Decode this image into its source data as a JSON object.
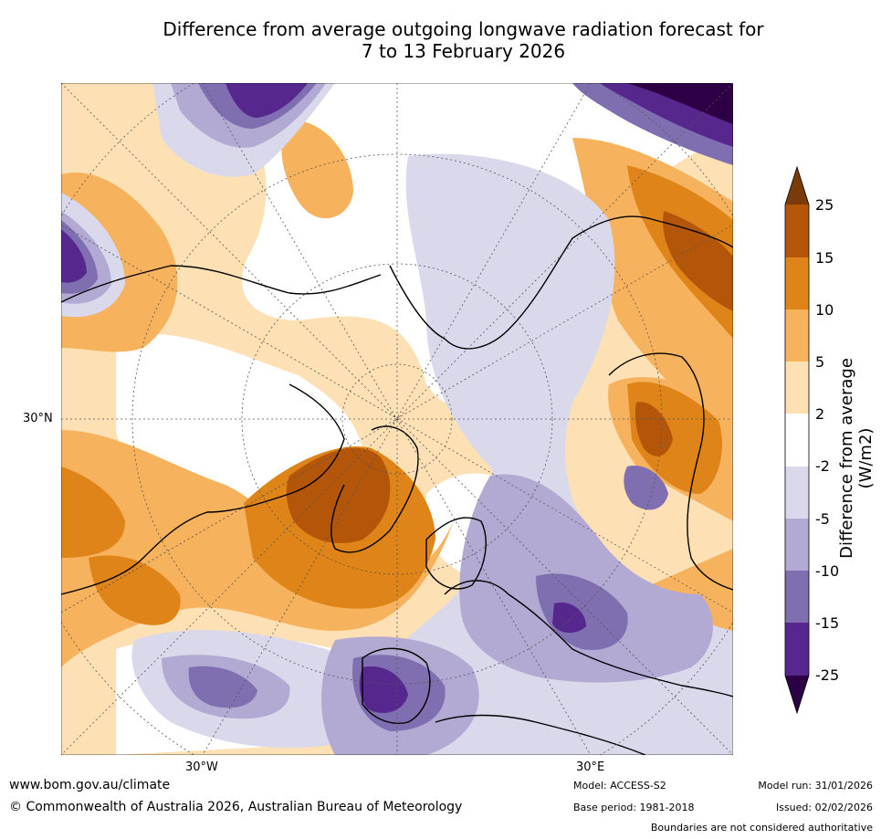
{
  "title": {
    "line1": "Difference from average outgoing longwave radiation forecast for",
    "line2": "7 to 13 February 2026"
  },
  "map": {
    "projection": "North polar stereographic",
    "axis_labels": {
      "left": "30°N",
      "bottom_left": "30°W",
      "bottom_right": "30°E"
    }
  },
  "colorbar": {
    "title": "Difference from average (W/m2)",
    "tick_labels": [
      "25",
      "15",
      "10",
      "5",
      "2",
      "-2",
      "-5",
      "-10",
      "-15",
      "-25"
    ],
    "colors": {
      "extend_high": "#7a3b0c",
      "b15_25": "#b3560a",
      "b10_15": "#df8418",
      "b5_10": "#f7b25d",
      "b2_5": "#fde0b4",
      "neutral": "#ffffff",
      "bm2_m5": "#dad9ec",
      "bm5_m10": "#b3aad4",
      "bm10_m15": "#7f6fb0",
      "bm15_m25": "#56278d",
      "extend_low": "#2d0046"
    }
  },
  "footer": {
    "url": "www.bom.gov.au/climate",
    "copyright": "© Commonwealth of Australia 2026, Australian Bureau of Meteorology",
    "model": "Model: ACCESS-S2",
    "base_period": "Base period: 1981-2018",
    "model_run": "Model run: 31/01/2026",
    "issued": "Issued: 02/02/2026",
    "disclaimer": "Boundaries are not considered authoritative"
  }
}
